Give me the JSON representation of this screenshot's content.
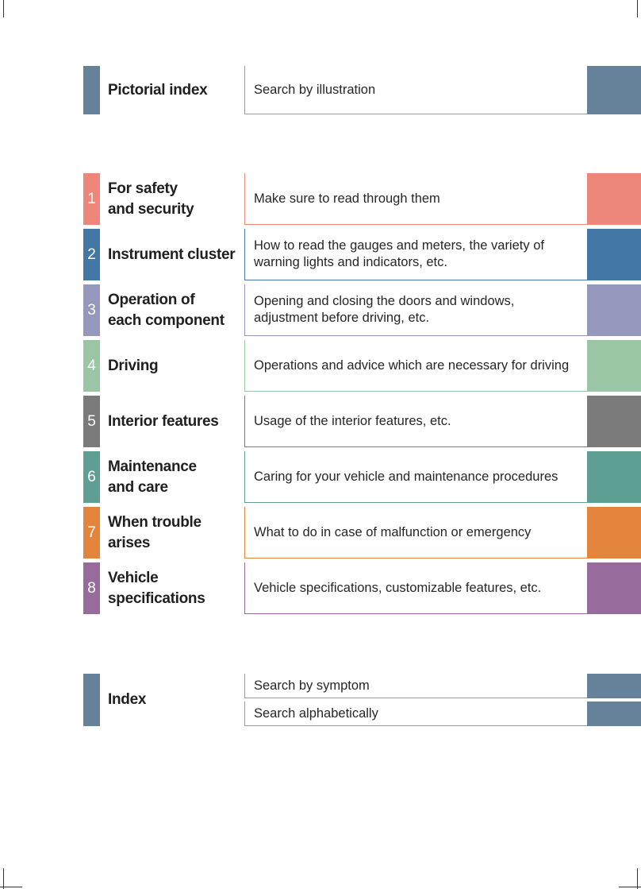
{
  "pictorial": {
    "title": "Pictorial index",
    "description": "Search by illustration",
    "color": "#65829a"
  },
  "chapters": [
    {
      "number": "1",
      "title": "For safety\nand security",
      "description": "Make sure to read through them",
      "color": "#ec877a"
    },
    {
      "number": "2",
      "title": "Instrument cluster",
      "description": "How to read the gauges and meters, the variety of warning lights and indicators, etc.",
      "color": "#4378a6"
    },
    {
      "number": "3",
      "title": "Operation of\neach component",
      "description": "Opening and closing the doors and windows, adjustment before driving, etc.",
      "color": "#9597bd"
    },
    {
      "number": "4",
      "title": "Driving",
      "description": "Operations and advice which are necessary for driving",
      "color": "#9ac6a5"
    },
    {
      "number": "5",
      "title": "Interior features",
      "description": "Usage of the interior features, etc.",
      "color": "#7a7a7a"
    },
    {
      "number": "6",
      "title": "Maintenance\nand care",
      "description": "Caring for your vehicle and maintenance procedures",
      "color": "#5f9e92"
    },
    {
      "number": "7",
      "title": "When trouble\narises",
      "description": "What to do in case of malfunction or emergency",
      "color": "#e4853e"
    },
    {
      "number": "8",
      "title": "Vehicle\nspecifications",
      "description": "Vehicle specifications, customizable features, etc.",
      "color": "#976c9c"
    }
  ],
  "index": {
    "title": "Index",
    "items": [
      "Search by symptom",
      "Search alphabetically"
    ],
    "color": "#65829a"
  }
}
